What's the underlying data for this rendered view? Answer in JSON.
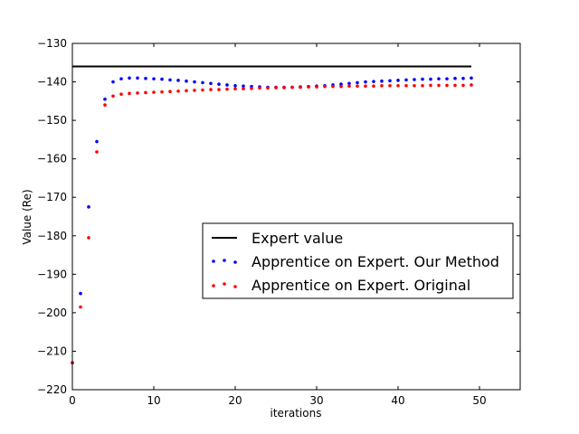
{
  "chart_data": {
    "type": "scatter",
    "title": "",
    "xlabel": "iterations",
    "ylabel": "Value (Re)",
    "xlim": [
      0,
      55
    ],
    "ylim": [
      -220,
      -130
    ],
    "xticks": [
      0,
      10,
      20,
      30,
      40,
      50
    ],
    "yticks": [
      -130,
      -140,
      -150,
      -160,
      -170,
      -180,
      -190,
      -200,
      -210,
      -220
    ],
    "xtick_labels": [
      "0",
      "10",
      "20",
      "30",
      "40",
      "50"
    ],
    "ytick_labels": [
      "−130",
      "−140",
      "−150",
      "−160",
      "−170",
      "−180",
      "−190",
      "−200",
      "−210",
      "−220"
    ],
    "grid": false,
    "legend_position": "center-right",
    "series": [
      {
        "name": "Expert value",
        "type": "line",
        "color": "#000000",
        "x": [
          0,
          49
        ],
        "y": [
          -136,
          -136
        ]
      },
      {
        "name": "Apprentice on Expert. Our Method",
        "type": "scatter",
        "color": "#0000ff",
        "x": [
          0,
          1,
          2,
          3,
          4,
          5,
          6,
          7,
          8,
          9,
          10,
          11,
          12,
          13,
          14,
          15,
          16,
          17,
          18,
          19,
          20,
          21,
          22,
          23,
          24,
          25,
          26,
          27,
          28,
          29,
          30,
          31,
          32,
          33,
          34,
          35,
          36,
          37,
          38,
          39,
          40,
          41,
          42,
          43,
          44,
          45,
          46,
          47,
          48,
          49
        ],
        "y": [
          -213,
          -195,
          -172.5,
          -155.5,
          -144.5,
          -140,
          -139.2,
          -139,
          -139,
          -139.1,
          -139.2,
          -139.3,
          -139.5,
          -139.6,
          -139.8,
          -140,
          -140.2,
          -140.4,
          -140.6,
          -140.8,
          -141,
          -141.1,
          -141.2,
          -141.3,
          -141.4,
          -141.4,
          -141.4,
          -141.4,
          -141.3,
          -141.2,
          -141.1,
          -141,
          -140.8,
          -140.6,
          -140.4,
          -140.2,
          -140,
          -139.9,
          -139.8,
          -139.7,
          -139.6,
          -139.5,
          -139.4,
          -139.3,
          -139.3,
          -139.2,
          -139.2,
          -139.1,
          -139.1,
          -139
        ]
      },
      {
        "name": "Apprentice on Expert. Original",
        "type": "scatter",
        "color": "#ff0000",
        "x": [
          0,
          1,
          2,
          3,
          4,
          5,
          6,
          7,
          8,
          9,
          10,
          11,
          12,
          13,
          14,
          15,
          16,
          17,
          18,
          19,
          20,
          21,
          22,
          23,
          24,
          25,
          26,
          27,
          28,
          29,
          30,
          31,
          32,
          33,
          34,
          35,
          36,
          37,
          38,
          39,
          40,
          41,
          42,
          43,
          44,
          45,
          46,
          47,
          48,
          49
        ],
        "y": [
          -213,
          -198.5,
          -180.5,
          -158.2,
          -146,
          -143.7,
          -143.2,
          -143,
          -142.9,
          -142.8,
          -142.7,
          -142.6,
          -142.5,
          -142.4,
          -142.3,
          -142.2,
          -142.1,
          -142,
          -142,
          -141.9,
          -141.8,
          -141.8,
          -141.7,
          -141.6,
          -141.6,
          -141.5,
          -141.5,
          -141.4,
          -141.4,
          -141.3,
          -141.3,
          -141.2,
          -141.2,
          -141.2,
          -141.1,
          -141.1,
          -141.1,
          -141.1,
          -141,
          -141,
          -141,
          -141,
          -141,
          -141,
          -140.9,
          -140.9,
          -140.9,
          -140.9,
          -140.9,
          -140.8
        ]
      }
    ]
  }
}
